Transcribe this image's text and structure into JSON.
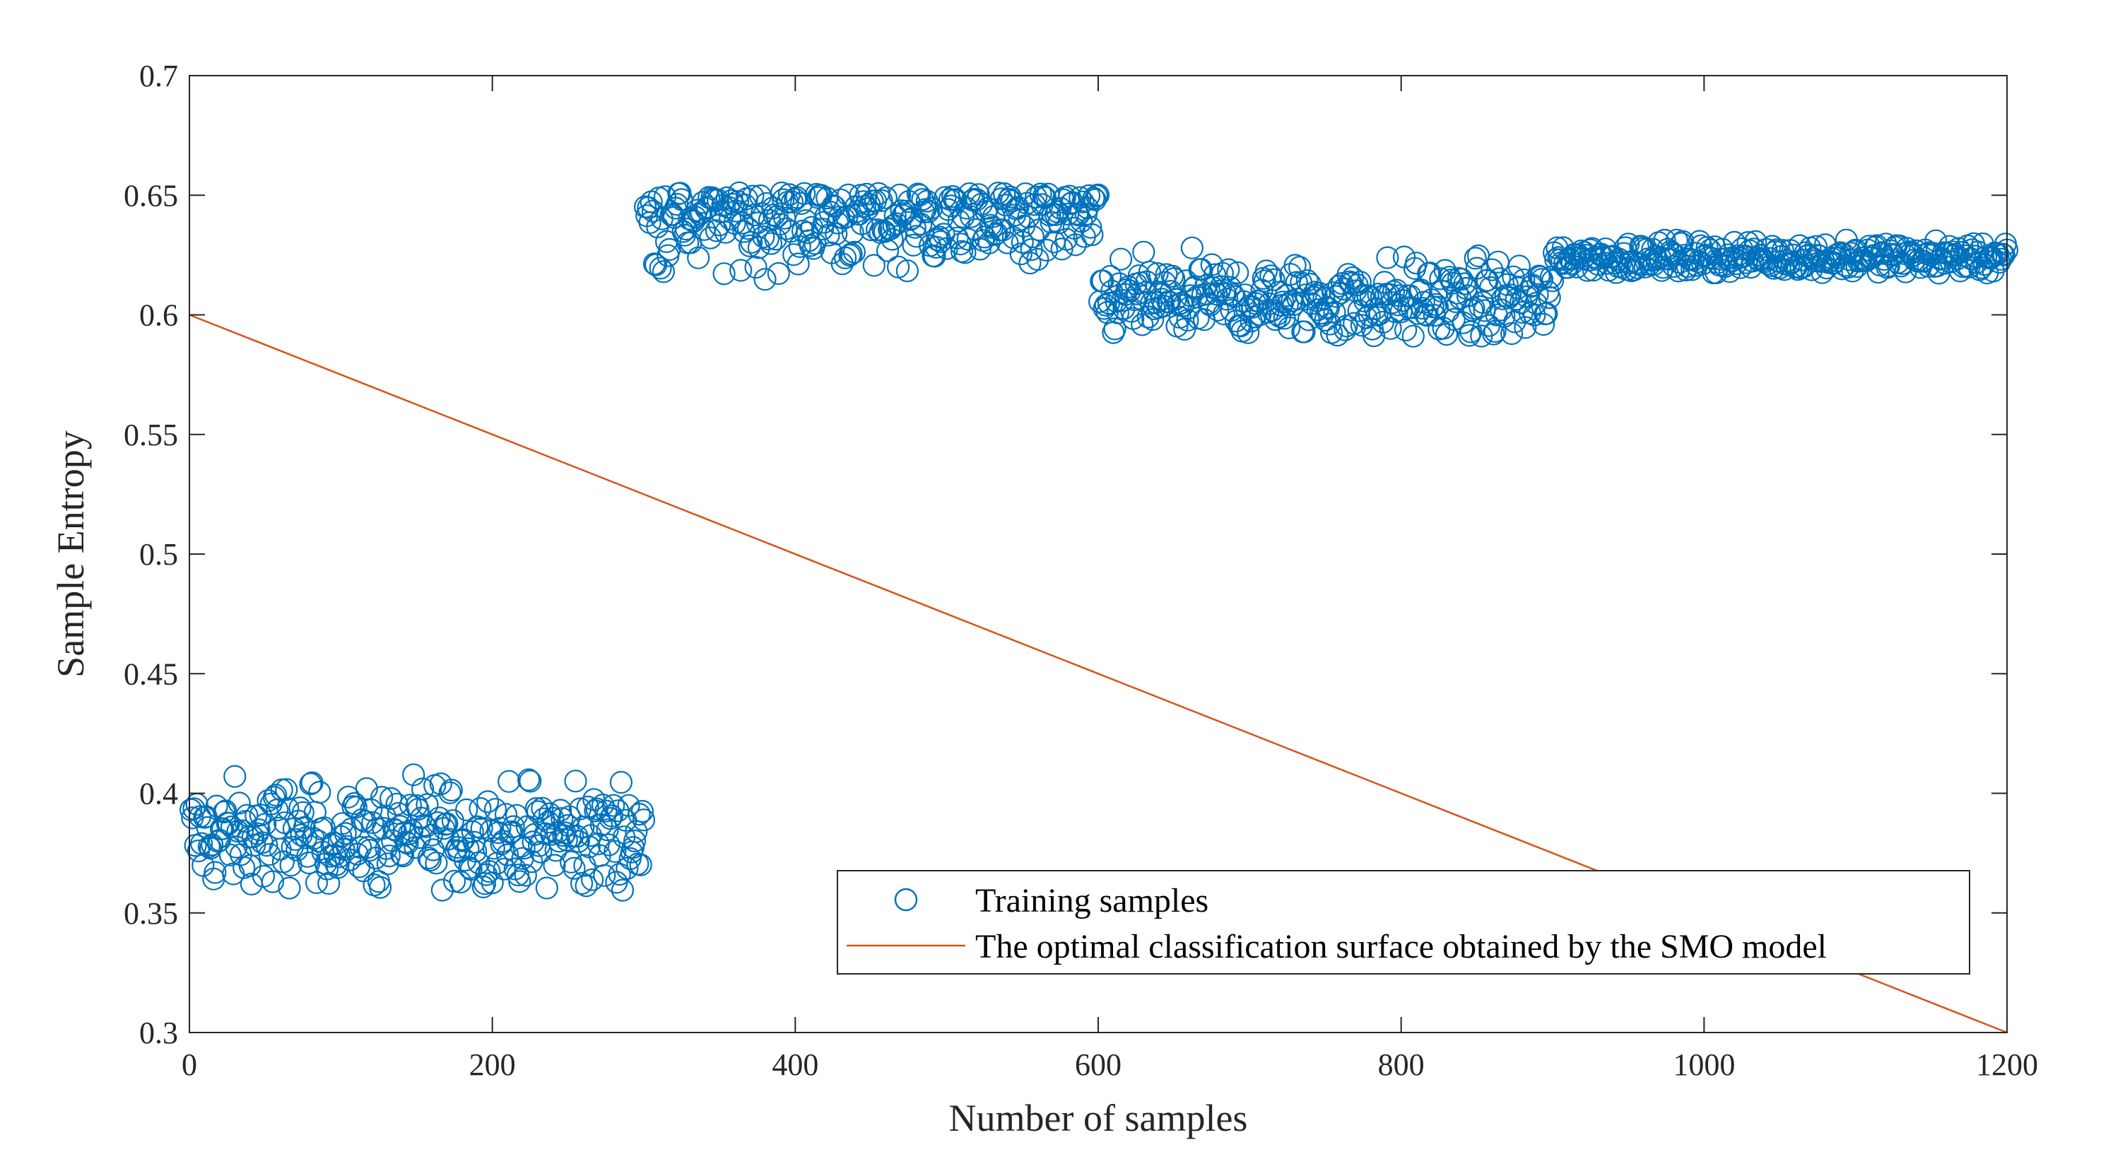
{
  "chart_data": {
    "type": "scatter",
    "title": "",
    "xlabel": "Number of samples",
    "ylabel": "Sample Entropy",
    "xlim": [
      0,
      1200
    ],
    "ylim": [
      0.3,
      0.7
    ],
    "xticks": [
      "0",
      "200",
      "400",
      "600",
      "800",
      "1000",
      "1200"
    ],
    "yticks": [
      "0.3",
      "0.35",
      "0.4",
      "0.45",
      "0.5",
      "0.55",
      "0.6",
      "0.65",
      "0.7"
    ],
    "grid": false,
    "legend_position": "bottom-right",
    "colors": {
      "samples": "#0072BD",
      "surface": "#D95319"
    },
    "series": [
      {
        "name": "Training samples",
        "kind": "scatter",
        "marker": "circle-open",
        "clusters": [
          {
            "x_range": [
              1,
              300
            ],
            "y_center": 0.382,
            "y_spread": 0.024,
            "y_min": 0.359,
            "y_max": 0.408
          },
          {
            "x_range": [
              301,
              600
            ],
            "y_center": 0.64,
            "y_spread": 0.022,
            "y_min": 0.608,
            "y_max": 0.651
          },
          {
            "x_range": [
              601,
              900
            ],
            "y_center": 0.606,
            "y_spread": 0.018,
            "y_min": 0.59,
            "y_max": 0.628
          },
          {
            "x_range": [
              901,
              1200
            ],
            "y_center": 0.624,
            "y_spread": 0.007,
            "y_min": 0.617,
            "y_max": 0.633
          }
        ]
      },
      {
        "name": "The optimal classification surface obtained by the SMO model",
        "kind": "line",
        "x": [
          0,
          1200
        ],
        "y": [
          0.6,
          0.3
        ]
      }
    ]
  }
}
